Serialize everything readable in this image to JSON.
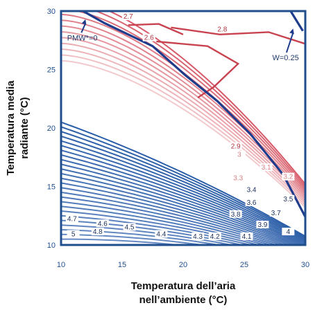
{
  "chart_data": {
    "type": "line",
    "title": "",
    "xlabel_lines": [
      "Temperatura dell’aria",
      "nell’ambiente (°C)"
    ],
    "ylabel_lines": [
      "Temperatura media",
      "radiante (°C)"
    ],
    "xlim": [
      10,
      30
    ],
    "ylim": [
      10,
      30
    ],
    "xticks": [
      "10",
      "15",
      "20",
      "25",
      "30"
    ],
    "yticks": [
      "10",
      "15",
      "20",
      "25",
      "30"
    ],
    "grid": false,
    "colors": {
      "frame": "#1f4e8c",
      "warm": "#c8434f",
      "cool": "#2b5ea8",
      "boundary": "#1f3b8c"
    },
    "contour_labels": [
      {
        "text": "2.7",
        "x": 15.5,
        "y": 29.4
      },
      {
        "text": "2.8",
        "x": 23.2,
        "y": 28.3
      },
      {
        "text": "2.6",
        "x": 17.2,
        "y": 27.6
      },
      {
        "text": "2.9",
        "x": 24.3,
        "y": 18.3
      },
      {
        "text": "3",
        "x": 24.6,
        "y": 17.6
      },
      {
        "text": "3.1",
        "x": 26.8,
        "y": 16.5
      },
      {
        "text": "3.2",
        "x": 28.6,
        "y": 15.7
      },
      {
        "text": "3.3",
        "x": 24.5,
        "y": 15.6
      },
      {
        "text": "3.4",
        "x": 25.6,
        "y": 14.6
      },
      {
        "text": "3.5",
        "x": 28.6,
        "y": 13.8
      },
      {
        "text": "3.6",
        "x": 25.6,
        "y": 13.5
      },
      {
        "text": "3.7",
        "x": 27.6,
        "y": 12.6
      },
      {
        "text": "3.8",
        "x": 24.3,
        "y": 12.5
      },
      {
        "text": "3.9",
        "x": 26.5,
        "y": 11.6
      },
      {
        "text": "4",
        "x": 28.6,
        "y": 11.0
      },
      {
        "text": "4.1",
        "x": 25.2,
        "y": 10.6
      },
      {
        "text": "4.2",
        "x": 22.6,
        "y": 10.6
      },
      {
        "text": "4.3",
        "x": 21.2,
        "y": 10.6
      },
      {
        "text": "4.4",
        "x": 18.2,
        "y": 10.8
      },
      {
        "text": "4.5",
        "x": 15.6,
        "y": 11.4
      },
      {
        "text": "4.6",
        "x": 13.4,
        "y": 11.7
      },
      {
        "text": "4.7",
        "x": 10.9,
        "y": 12.1
      },
      {
        "text": "4.8",
        "x": 13.0,
        "y": 11.0
      },
      {
        "text": "5",
        "x": 11.0,
        "y": 10.8
      }
    ],
    "annotations": [
      {
        "text": "PMW*=0",
        "x": 10.5,
        "y": 27.5,
        "arrow_to": [
          12.0,
          29.3
        ]
      },
      {
        "text": "W=0.25",
        "x": 27.3,
        "y": 25.8,
        "arrow_to": [
          29.0,
          28.5
        ]
      }
    ],
    "boundary_lines": [
      {
        "name_ref": "PMW*=0",
        "points": [
          [
            11.8,
            30
          ],
          [
            13.5,
            29
          ],
          [
            15.5,
            28
          ],
          [
            17.5,
            27
          ],
          [
            20.2,
            24.5
          ],
          [
            22.8,
            22.3
          ],
          [
            25.5,
            19.5
          ],
          [
            28.2,
            16
          ],
          [
            30,
            12.4
          ]
        ]
      },
      {
        "name_ref": "W=0.25",
        "points": [
          [
            28.8,
            30
          ],
          [
            29.8,
            28.3
          ]
        ]
      }
    ]
  }
}
